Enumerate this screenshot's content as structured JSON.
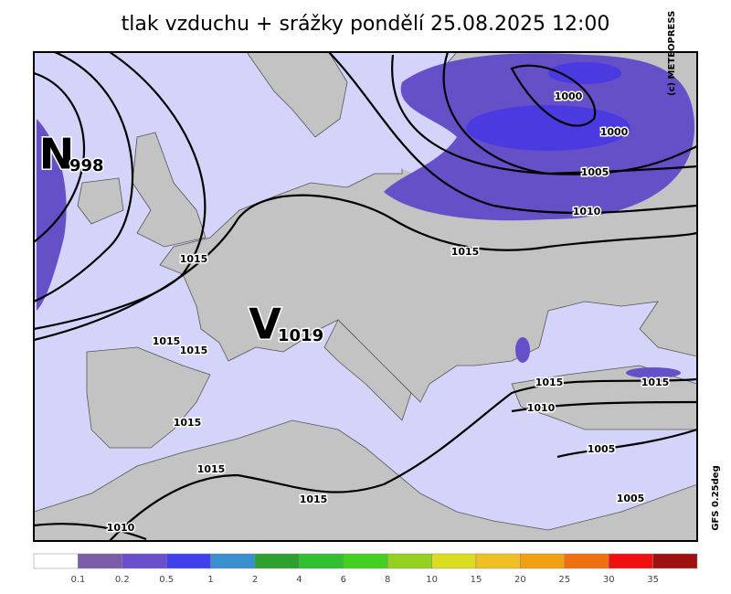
{
  "title": "tlak vzduchu + srážky pondělí 25.08.2025 12:00",
  "credit": "(c) METEOPRESS",
  "model": "GFS 0.25deg",
  "centers": [
    {
      "letter": "N",
      "value": "998"
    },
    {
      "letter": "V",
      "value": "1019"
    }
  ],
  "isobar_labels": [
    "1000",
    "1000",
    "1005",
    "1010",
    "1015",
    "1015",
    "1015",
    "1015",
    "1015",
    "1015",
    "1015",
    "1015",
    "1015",
    "1010",
    "1005",
    "1005",
    "1010"
  ],
  "legend": {
    "colors": [
      "#ffffff",
      "#7a5ca8",
      "#6a4fcc",
      "#4040ee",
      "#3a8fd0",
      "#2ea02e",
      "#30c030",
      "#44d020",
      "#94d020",
      "#dcdc20",
      "#f0c020",
      "#f0a010",
      "#f07010",
      "#f01010",
      "#a01010"
    ],
    "labels": [
      "0.1",
      "0.2",
      "0.5",
      "1",
      "2",
      "4",
      "6",
      "8",
      "10",
      "15",
      "20",
      "25",
      "30",
      "35"
    ]
  }
}
